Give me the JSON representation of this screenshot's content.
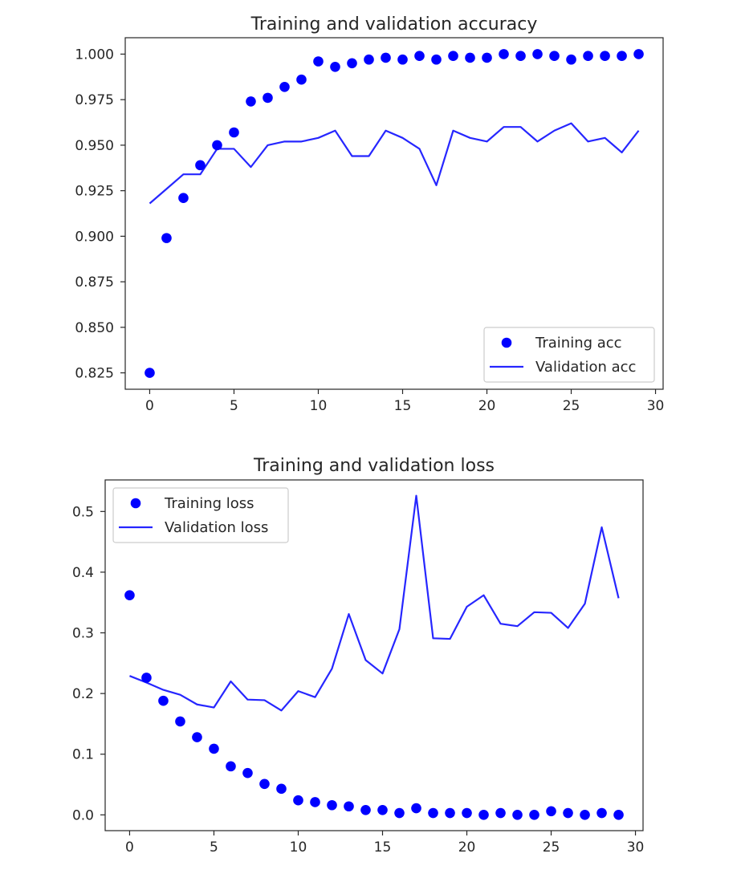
{
  "colors": {
    "series": "#0000ff",
    "text": "#262626"
  },
  "chart_data": [
    {
      "type": "line",
      "title": "Training and validation accuracy",
      "xlabel": "",
      "ylabel": "",
      "xlim": [
        -1.45,
        30.45
      ],
      "ylim": [
        0.816,
        1.009
      ],
      "xticks": [
        0,
        5,
        10,
        15,
        20,
        25,
        30
      ],
      "xtick_labels": [
        "0",
        "5",
        "10",
        "15",
        "20",
        "25",
        "30"
      ],
      "yticks": [
        0.825,
        0.85,
        0.875,
        0.9,
        0.925,
        0.95,
        0.975,
        1.0
      ],
      "ytick_labels": [
        "0.825",
        "0.850",
        "0.875",
        "0.900",
        "0.925",
        "0.950",
        "0.975",
        "1.000"
      ],
      "legend_position": "lower-right",
      "x": [
        0,
        1,
        2,
        3,
        4,
        5,
        6,
        7,
        8,
        9,
        10,
        11,
        12,
        13,
        14,
        15,
        16,
        17,
        18,
        19,
        20,
        21,
        22,
        23,
        24,
        25,
        26,
        27,
        28,
        29
      ],
      "series": [
        {
          "name": "Training acc",
          "style": "dots",
          "values": [
            0.825,
            0.899,
            0.921,
            0.939,
            0.95,
            0.957,
            0.974,
            0.976,
            0.982,
            0.986,
            0.996,
            0.993,
            0.995,
            0.997,
            0.998,
            0.997,
            0.999,
            0.997,
            0.999,
            0.998,
            0.998,
            1.0,
            0.999,
            1.0,
            0.999,
            0.997,
            0.999,
            0.999,
            0.999,
            1.0
          ]
        },
        {
          "name": "Validation acc",
          "style": "line",
          "values": [
            0.918,
            0.926,
            0.934,
            0.934,
            0.948,
            0.948,
            0.938,
            0.95,
            0.952,
            0.952,
            0.954,
            0.958,
            0.944,
            0.944,
            0.958,
            0.954,
            0.948,
            0.928,
            0.958,
            0.954,
            0.952,
            0.96,
            0.96,
            0.952,
            0.958,
            0.962,
            0.952,
            0.954,
            0.946,
            0.958
          ]
        }
      ]
    },
    {
      "type": "line",
      "title": "Training and validation loss",
      "xlabel": "",
      "ylabel": "",
      "xlim": [
        -1.45,
        30.45
      ],
      "ylim": [
        -0.026,
        0.552
      ],
      "xticks": [
        0,
        5,
        10,
        15,
        20,
        25,
        30
      ],
      "xtick_labels": [
        "0",
        "5",
        "10",
        "15",
        "20",
        "25",
        "30"
      ],
      "yticks": [
        0.0,
        0.1,
        0.2,
        0.3,
        0.4,
        0.5
      ],
      "ytick_labels": [
        "0.0",
        "0.1",
        "0.2",
        "0.3",
        "0.4",
        "0.5"
      ],
      "legend_position": "upper-left",
      "x": [
        0,
        1,
        2,
        3,
        4,
        5,
        6,
        7,
        8,
        9,
        10,
        11,
        12,
        13,
        14,
        15,
        16,
        17,
        18,
        19,
        20,
        21,
        22,
        23,
        24,
        25,
        26,
        27,
        28,
        29
      ],
      "series": [
        {
          "name": "Training loss",
          "style": "dots",
          "values": [
            0.362,
            0.226,
            0.188,
            0.154,
            0.128,
            0.109,
            0.08,
            0.069,
            0.051,
            0.043,
            0.024,
            0.021,
            0.016,
            0.014,
            0.008,
            0.008,
            0.003,
            0.011,
            0.003,
            0.003,
            0.003,
            0.0,
            0.003,
            0.0,
            0.0,
            0.006,
            0.003,
            0.0,
            0.003,
            0.0
          ]
        },
        {
          "name": "Validation loss",
          "style": "line",
          "values": [
            0.229,
            0.218,
            0.206,
            0.198,
            0.182,
            0.177,
            0.22,
            0.19,
            0.189,
            0.172,
            0.204,
            0.194,
            0.241,
            0.331,
            0.255,
            0.233,
            0.306,
            0.526,
            0.291,
            0.29,
            0.343,
            0.362,
            0.315,
            0.311,
            0.334,
            0.333,
            0.308,
            0.348,
            0.474,
            0.357
          ]
        }
      ]
    }
  ]
}
